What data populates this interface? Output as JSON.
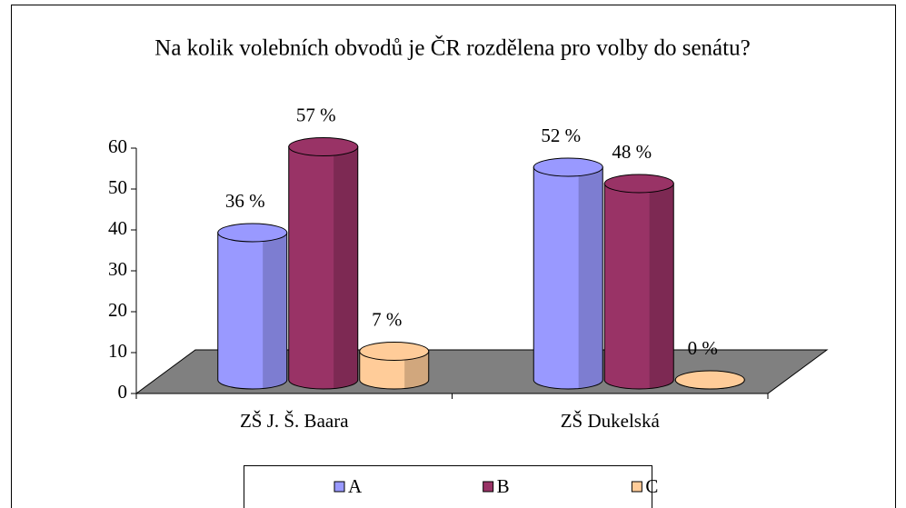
{
  "chart_data": {
    "type": "bar3d",
    "title": "Na kolik volebních obvodů je ČR rozdělena pro volby do senátu?",
    "categories": [
      "ZŠ J. Š. Baara",
      "ZŠ Dukelská"
    ],
    "series": [
      {
        "name": "A",
        "color": "#9999ff",
        "values": [
          36,
          52
        ],
        "value_labels": [
          "36 %",
          "52 %"
        ]
      },
      {
        "name": "B",
        "color": "#993366",
        "values": [
          57,
          48
        ],
        "value_labels": [
          "57 %",
          "48 %"
        ]
      },
      {
        "name": "C",
        "color": "#ffcc99",
        "values": [
          7,
          0
        ],
        "value_labels": [
          "7 %",
          "0 %"
        ]
      }
    ],
    "ylim": [
      0,
      60
    ],
    "yticks": [
      0,
      10,
      20,
      30,
      40,
      50,
      60
    ],
    "legend": "bottom"
  }
}
